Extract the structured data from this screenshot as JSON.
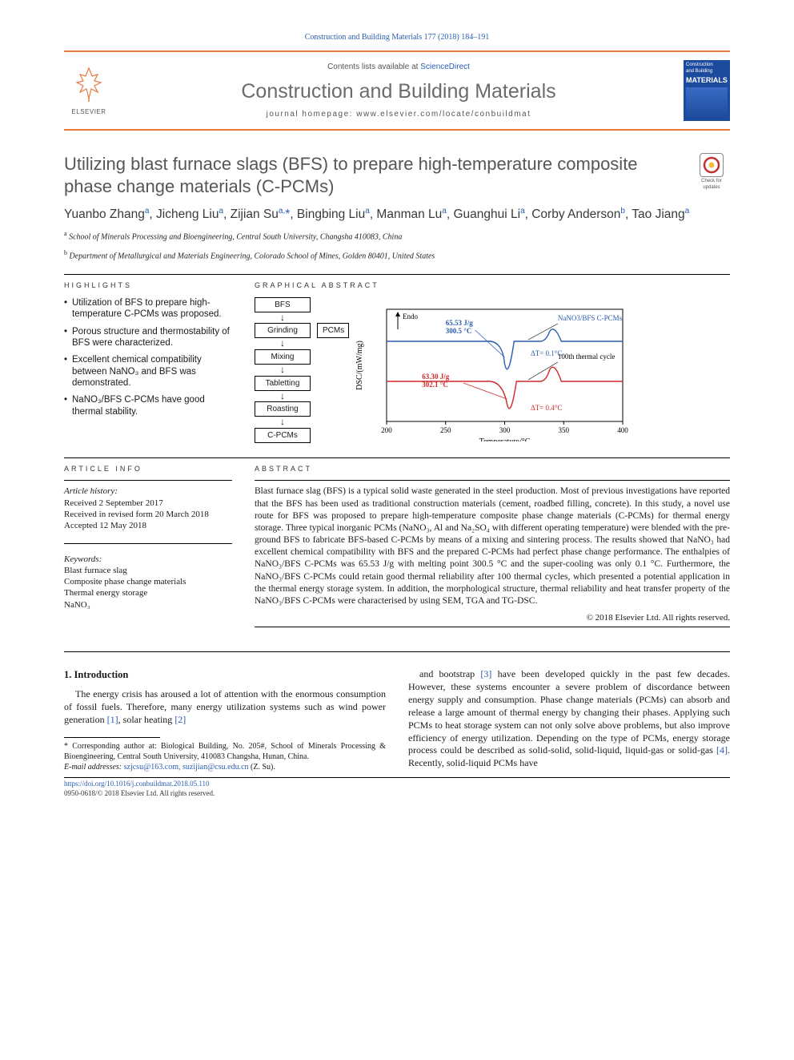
{
  "header": {
    "citation": "Construction and Building Materials 177 (2018) 184–191",
    "contents_prefix": "Contents lists available at ",
    "contents_link": "ScienceDirect",
    "journal_name": "Construction and Building Materials",
    "homepage_prefix": "journal homepage: ",
    "homepage_url": "www.elsevier.com/locate/conbuildmat",
    "publisher_name": "ELSEVIER",
    "cover_title_1": "Construction",
    "cover_title_2": "and Building",
    "cover_title_3": "MATERIALS"
  },
  "title": "Utilizing blast furnace slags (BFS) to prepare high-temperature composite phase change materials (C-PCMs)",
  "check_updates_label": "Check for updates",
  "authors_html": "Yuanbo Zhang<sup>a</sup>, Jicheng Liu<sup>a</sup>, Zijian Su<sup>a,</sup><span class='star'>*</span>, Bingbing Liu<sup>a</sup>, Manman Lu<sup>a</sup>, Guanghui Li<sup>a</sup>, Corby Anderson<sup>b</sup>, Tao Jiang<sup>a</sup>",
  "affiliations": {
    "a": "School of Minerals Processing and Bioengineering, Central South University, Changsha 410083, China",
    "b": "Department of Metallurgical and Materials Engineering, Colorado School of Mines, Golden 80401, United States"
  },
  "highlights": {
    "heading": "HIGHLIGHTS",
    "items": [
      "Utilization of BFS to prepare high-temperature C-PCMs was proposed.",
      "Porous structure and thermostability of BFS were characterized.",
      "Excellent chemical compatibility between NaNO₃ and BFS was demonstrated.",
      "NaNO₃/BFS C-PCMs have good thermal stability."
    ]
  },
  "graphical": {
    "heading": "GRAPHICAL ABSTRACT",
    "flowchart": {
      "steps": [
        "BFS",
        "Grinding",
        "Mixing",
        "Tabletting",
        "Roasting",
        "C-PCMs"
      ],
      "side_label": "PCMs"
    },
    "plot": {
      "type": "line",
      "xlabel": "Temperature/°C",
      "ylabel": "DSC/(mW/mg)",
      "endo_label": "Endo",
      "xlim": [
        200,
        400
      ],
      "xticks": [
        200,
        250,
        300,
        350,
        400
      ],
      "series": [
        {
          "name": "NaNO3/BFS C-PCMs",
          "color": "#2a5db0",
          "annotation": "65.53 J/g\n300.5 °C",
          "delta_t": "ΔT= 0.1°C"
        },
        {
          "name": "100th thermal cycle",
          "color": "#d02828",
          "annotation": "63.30 J/g\n302.1 °C",
          "delta_t": "ΔT= 0.4°C"
        }
      ],
      "axis_color": "#000000",
      "background_color": "#ffffff"
    }
  },
  "article_info": {
    "heading": "ARTICLE INFO",
    "history_hdr": "Article history:",
    "received": "Received 2 September 2017",
    "revised": "Received in revised form 20 March 2018",
    "accepted": "Accepted 12 May 2018",
    "keywords_hdr": "Keywords:",
    "keywords": [
      "Blast furnace slag",
      "Composite phase change materials",
      "Thermal energy storage",
      "NaNO₃"
    ]
  },
  "abstract": {
    "heading": "ABSTRACT",
    "text": "Blast furnace slag (BFS) is a typical solid waste generated in the steel production. Most of previous investigations have reported that the BFS has been used as traditional construction materials (cement, roadbed filling, concrete). In this study, a novel use route for BFS was proposed to prepare high-temperature composite phase change materials (C-PCMs) for thermal energy storage. Three typical inorganic PCMs (NaNO₃, Al and Na₂SO₄ with different operating temperature) were blended with the pre-ground BFS to fabricate BFS-based C-PCMs by means of a mixing and sintering process. The results showed that NaNO₃ had excellent chemical compatibility with BFS and the prepared C-PCMs had perfect phase change performance. The enthalpies of NaNO₃/BFS C-PCMs was 65.53 J/g with melting point 300.5 °C and the super-cooling was only 0.1 °C. Furthermore, the NaNO₃/BFS C-PCMs could retain good thermal reliability after 100 thermal cycles, which presented a potential application in the thermal energy storage system. In addition, the morphological structure, thermal reliability and heat transfer property of the NaNO₃/BFS C-PCMs were characterised by using SEM, TGA and TG-DSC.",
    "copyright": "© 2018 Elsevier Ltd. All rights reserved."
  },
  "intro": {
    "heading": "1. Introduction",
    "col1": "The energy crisis has aroused a lot of attention with the enormous consumption of fossil fuels. Therefore, many energy utilization systems such as wind power generation [1], solar heating [2]",
    "col2": "and bootstrap [3] have been developed quickly in the past few decades. However, these systems encounter a severe problem of discordance between energy supply and consumption. Phase change materials (PCMs) can absorb and release a large amount of thermal energy by changing their phases. Applying such PCMs to heat storage system can not only solve above problems, but also improve efficiency of energy utilization. Depending on the type of PCMs, energy storage process could be described as solid-solid, solid-liquid, liquid-gas or solid-gas [4]. Recently, solid-liquid PCMs have"
  },
  "footnote": {
    "corr": "* Corresponding author at: Biological Building, No. 205#, School of Minerals Processing & Bioengineering, Central South University, 410083 Changsha, Hunan, China.",
    "email_label": "E-mail addresses:",
    "emails": "szjcsu@163.com, suzijian@csu.edu.cn",
    "email_author": "(Z. Su)."
  },
  "footer": {
    "doi": "https://doi.org/10.1016/j.conbuildmat.2018.05.110",
    "issn": "0950-0618/© 2018 Elsevier Ltd. All rights reserved."
  },
  "colors": {
    "link": "#2a5db0",
    "accent": "#e8793f",
    "grey_text": "#565656"
  }
}
